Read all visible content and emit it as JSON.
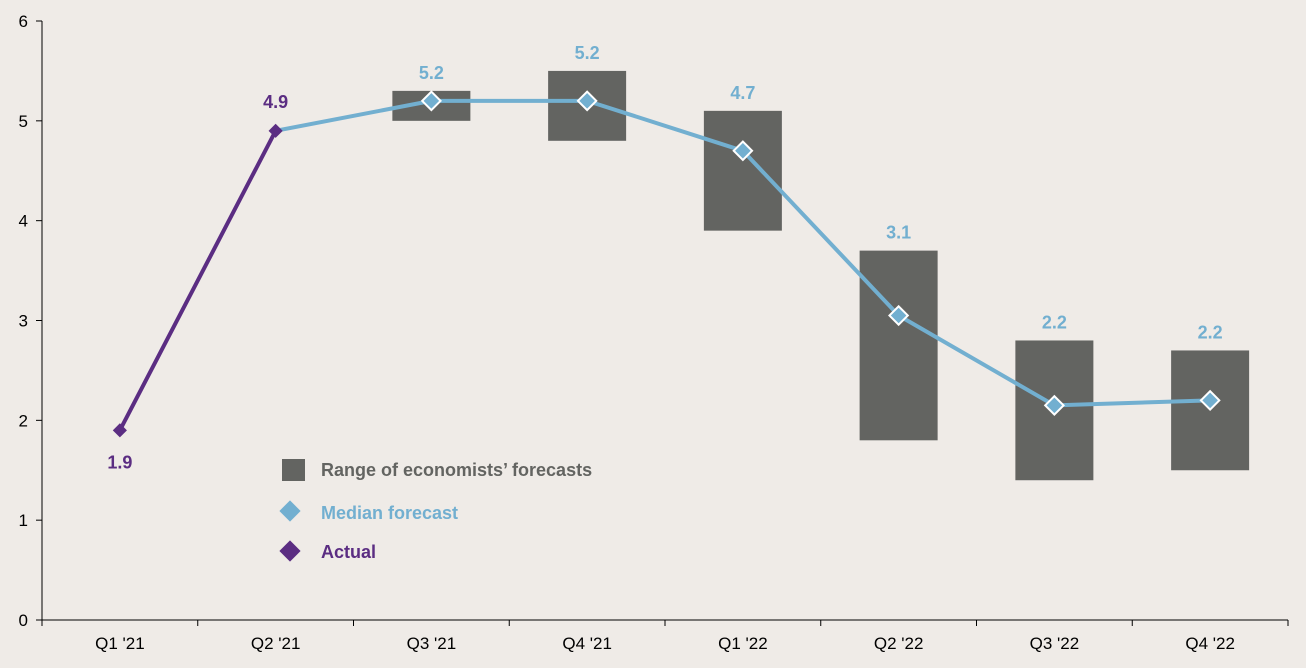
{
  "chart_data": {
    "type": "line",
    "title": "",
    "xlabel": "",
    "ylabel": "",
    "categories": [
      "Q1 '21",
      "Q2 '21",
      "Q3 '21",
      "Q4 '21",
      "Q1 '22",
      "Q2 '22",
      "Q3 '22",
      "Q4 '22"
    ],
    "ylim": [
      0,
      6
    ],
    "yticks": [
      "0",
      "1",
      "2",
      "3",
      "4",
      "5",
      "6"
    ],
    "grid": false,
    "legend_position": "center-left",
    "range": {
      "name": "Range of economists’ forecasts",
      "color": "#636461",
      "low": [
        null,
        null,
        5.0,
        4.8,
        3.9,
        1.8,
        1.4,
        1.5
      ],
      "high": [
        null,
        null,
        5.3,
        5.5,
        5.1,
        3.7,
        2.8,
        2.7
      ]
    },
    "series": [
      {
        "name": "Actual",
        "color": "#5b2d82",
        "values": [
          1.9,
          4.9,
          null,
          null,
          null,
          null,
          null,
          null
        ],
        "labels": [
          "1.9",
          "4.9",
          null,
          null,
          null,
          null,
          null,
          null
        ]
      },
      {
        "name": "Median forecast",
        "color": "#72afd0",
        "values": [
          null,
          4.9,
          5.2,
          5.2,
          4.7,
          3.05,
          2.15,
          2.2
        ],
        "labels": [
          null,
          null,
          "5.2",
          "5.2",
          "4.7",
          "3.1",
          "2.2",
          "2.2"
        ]
      }
    ]
  }
}
